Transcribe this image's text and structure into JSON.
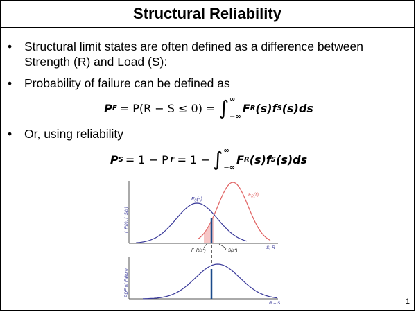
{
  "slide": {
    "title": "Structural Reliability",
    "bullets": [
      {
        "text": "Structural limit states are often defined as a difference between Strength (R) and Load (S):"
      },
      {
        "text": "Probability of failure can be defined as"
      },
      {
        "text": "Or, using reliability"
      }
    ],
    "bullet_char": "•",
    "equations": {
      "pf_lhs": "P",
      "pf_lhs_sub": "F",
      "pf_mid": "= P(R − S ≤ 0) =",
      "pf_int_upper": "∞",
      "pf_int_lower": "−∞",
      "pf_integrand": "F",
      "pf_integrand_sub1": "R",
      "pf_integrand_mid": "(s)f",
      "pf_integrand_sub2": "S",
      "pf_integrand_end": "(s)ds",
      "ps_lhs": "P",
      "ps_lhs_sub": "S",
      "ps_mid1": "= 1 − P",
      "ps_mid1_sub": "F",
      "ps_mid2": "= 1 −"
    },
    "page_number": "1"
  },
  "figure": {
    "colors": {
      "load": "#3a3a9a",
      "strength": "#e06060",
      "axis": "#555555",
      "highlight": "#1a4a8a",
      "overlap": "#f0a0a0"
    },
    "labels": {
      "fs_curve": "F",
      "fs_sub": "S",
      "fs_arg": "(s)",
      "fr_curve": "F",
      "fr_sub": "R",
      "fr_arg": "(r)",
      "y_upper": "f_R(r), f_S(s)",
      "x_upper": "S, R",
      "fr_star": "F_R(s*)",
      "fs_star": "f_S(s*)",
      "y_lower": "PDF of Failure",
      "x_lower": "R – S"
    }
  }
}
